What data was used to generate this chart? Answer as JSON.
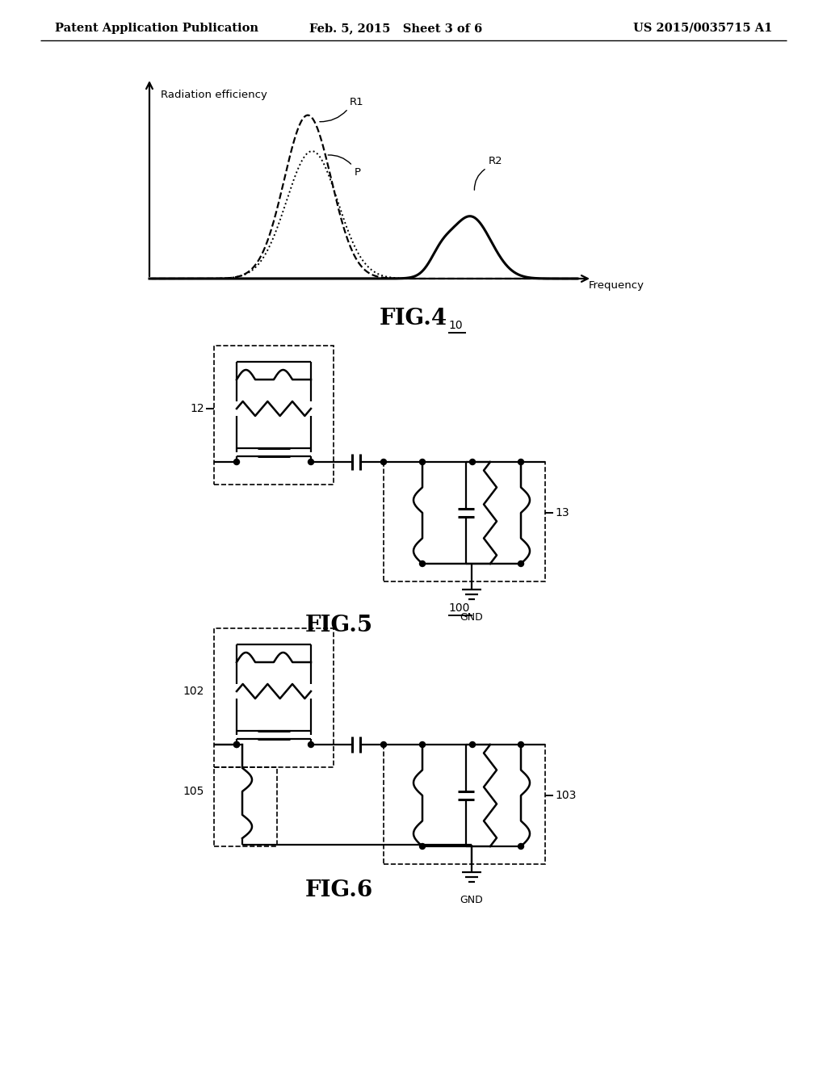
{
  "title_left": "Patent Application Publication",
  "title_mid": "Feb. 5, 2015   Sheet 3 of 6",
  "title_right": "US 2015/0035715 A1",
  "fig4_label": "FIG.4",
  "fig5_label": "FIG.5",
  "fig6_label": "FIG.6",
  "ylabel": "Radiation efficiency",
  "xlabel": "Frequency",
  "bg_color": "#ffffff"
}
